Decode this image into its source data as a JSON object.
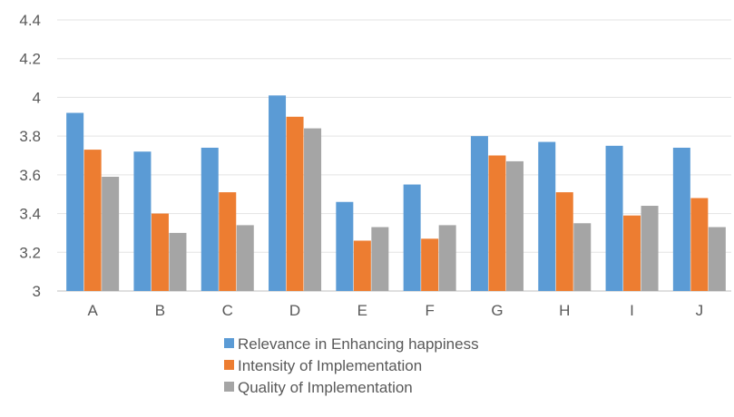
{
  "chart_data": {
    "type": "bar",
    "title": "",
    "xlabel": "",
    "ylabel": "",
    "categories": [
      "A",
      "B",
      "C",
      "D",
      "E",
      "F",
      "G",
      "H",
      "I",
      "J"
    ],
    "ylim": [
      3,
      4.4
    ],
    "yticks": [
      "3",
      "3.2",
      "3.4",
      "3.6",
      "3.8",
      "4",
      "4.2",
      "4.4"
    ],
    "grid": true,
    "legend_position": "bottom",
    "series": [
      {
        "name": "Relevance in Enhancing happiness",
        "color": "#5b9bd5",
        "values": [
          3.92,
          3.72,
          3.74,
          4.01,
          3.46,
          3.55,
          3.8,
          3.77,
          3.75,
          3.74
        ]
      },
      {
        "name": "Intensity of Implementation",
        "color": "#ed7d31",
        "values": [
          3.73,
          3.4,
          3.51,
          3.9,
          3.26,
          3.27,
          3.7,
          3.51,
          3.39,
          3.48
        ]
      },
      {
        "name": "Quality of Implementation",
        "color": "#a5a5a5",
        "values": [
          3.59,
          3.3,
          3.34,
          3.84,
          3.33,
          3.34,
          3.67,
          3.35,
          3.44,
          3.33
        ]
      }
    ]
  }
}
